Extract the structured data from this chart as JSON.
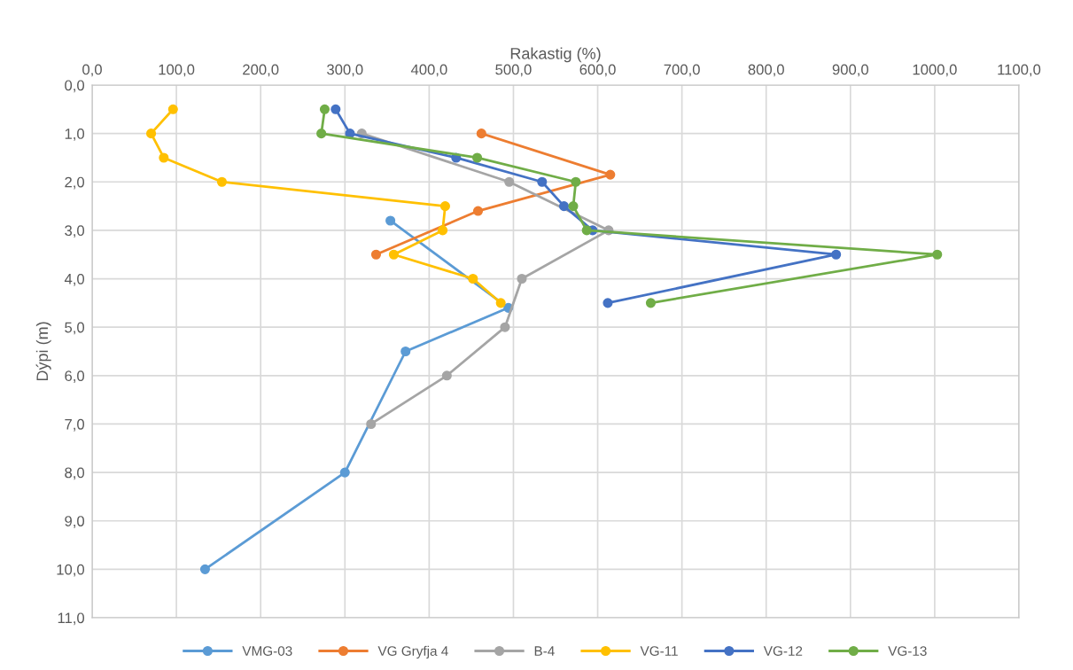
{
  "chart_data": {
    "type": "line",
    "xlabel": "Rakastig (%)",
    "ylabel": "Dýpi (m)",
    "xlim": [
      0,
      1100
    ],
    "ylim": [
      11,
      0
    ],
    "xticks": [
      {
        "value": 0,
        "label": "0,0"
      },
      {
        "value": 100,
        "label": "100,0"
      },
      {
        "value": 200,
        "label": "200,0"
      },
      {
        "value": 300,
        "label": "300,0"
      },
      {
        "value": 400,
        "label": "400,0"
      },
      {
        "value": 500,
        "label": "500,0"
      },
      {
        "value": 600,
        "label": "600,0"
      },
      {
        "value": 700,
        "label": "700,0"
      },
      {
        "value": 800,
        "label": "800,0"
      },
      {
        "value": 900,
        "label": "900,0"
      },
      {
        "value": 1000,
        "label": "1000,0"
      },
      {
        "value": 1100,
        "label": "1100,0"
      }
    ],
    "yticks": [
      {
        "value": 0,
        "label": "0,0"
      },
      {
        "value": 1,
        "label": "1,0"
      },
      {
        "value": 2,
        "label": "2,0"
      },
      {
        "value": 3,
        "label": "3,0"
      },
      {
        "value": 4,
        "label": "4,0"
      },
      {
        "value": 5,
        "label": "5,0"
      },
      {
        "value": 6,
        "label": "6,0"
      },
      {
        "value": 7,
        "label": "7,0"
      },
      {
        "value": 8,
        "label": "8,0"
      },
      {
        "value": 9,
        "label": "9,0"
      },
      {
        "value": 10,
        "label": "10,0"
      },
      {
        "value": 11,
        "label": "11,0"
      }
    ],
    "grid": true,
    "legend": "bottom",
    "marker": "circle",
    "line_style": "solid",
    "series": [
      {
        "name": "VMG-03",
        "color": "#5b9bd5",
        "x": [
          354,
          494,
          372,
          300,
          134
        ],
        "values": [
          2.8,
          4.6,
          5.5,
          8.0,
          10.0
        ]
      },
      {
        "name": "VG Gryfja 4",
        "color": "#ed7d31",
        "x": [
          462,
          615,
          458,
          337
        ],
        "values": [
          1.0,
          1.85,
          2.6,
          3.5
        ]
      },
      {
        "name": "B-4",
        "color": "#a5a5a5",
        "x": [
          320,
          495,
          613,
          510,
          490,
          421,
          331
        ],
        "values": [
          1.0,
          2.0,
          3.0,
          4.0,
          5.0,
          6.0,
          7.0
        ]
      },
      {
        "name": "VG-11",
        "color": "#ffc000",
        "x": [
          96,
          70,
          85,
          154,
          419,
          416,
          358,
          452,
          485
        ],
        "values": [
          0.5,
          1.0,
          1.5,
          2.0,
          2.5,
          3.0,
          3.5,
          4.0,
          4.5
        ]
      },
      {
        "name": "VG-12",
        "color": "#4472c4",
        "x": [
          289,
          306,
          432,
          534,
          560,
          594,
          883,
          612
        ],
        "values": [
          0.5,
          1.0,
          1.5,
          2.0,
          2.5,
          3.0,
          3.5,
          4.5
        ]
      },
      {
        "name": "VG-13",
        "color": "#70ad47",
        "x": [
          276,
          272,
          457,
          574,
          571,
          587,
          1003,
          663
        ],
        "values": [
          0.5,
          1.0,
          1.5,
          2.0,
          2.5,
          3.0,
          3.5,
          4.5
        ]
      }
    ]
  }
}
